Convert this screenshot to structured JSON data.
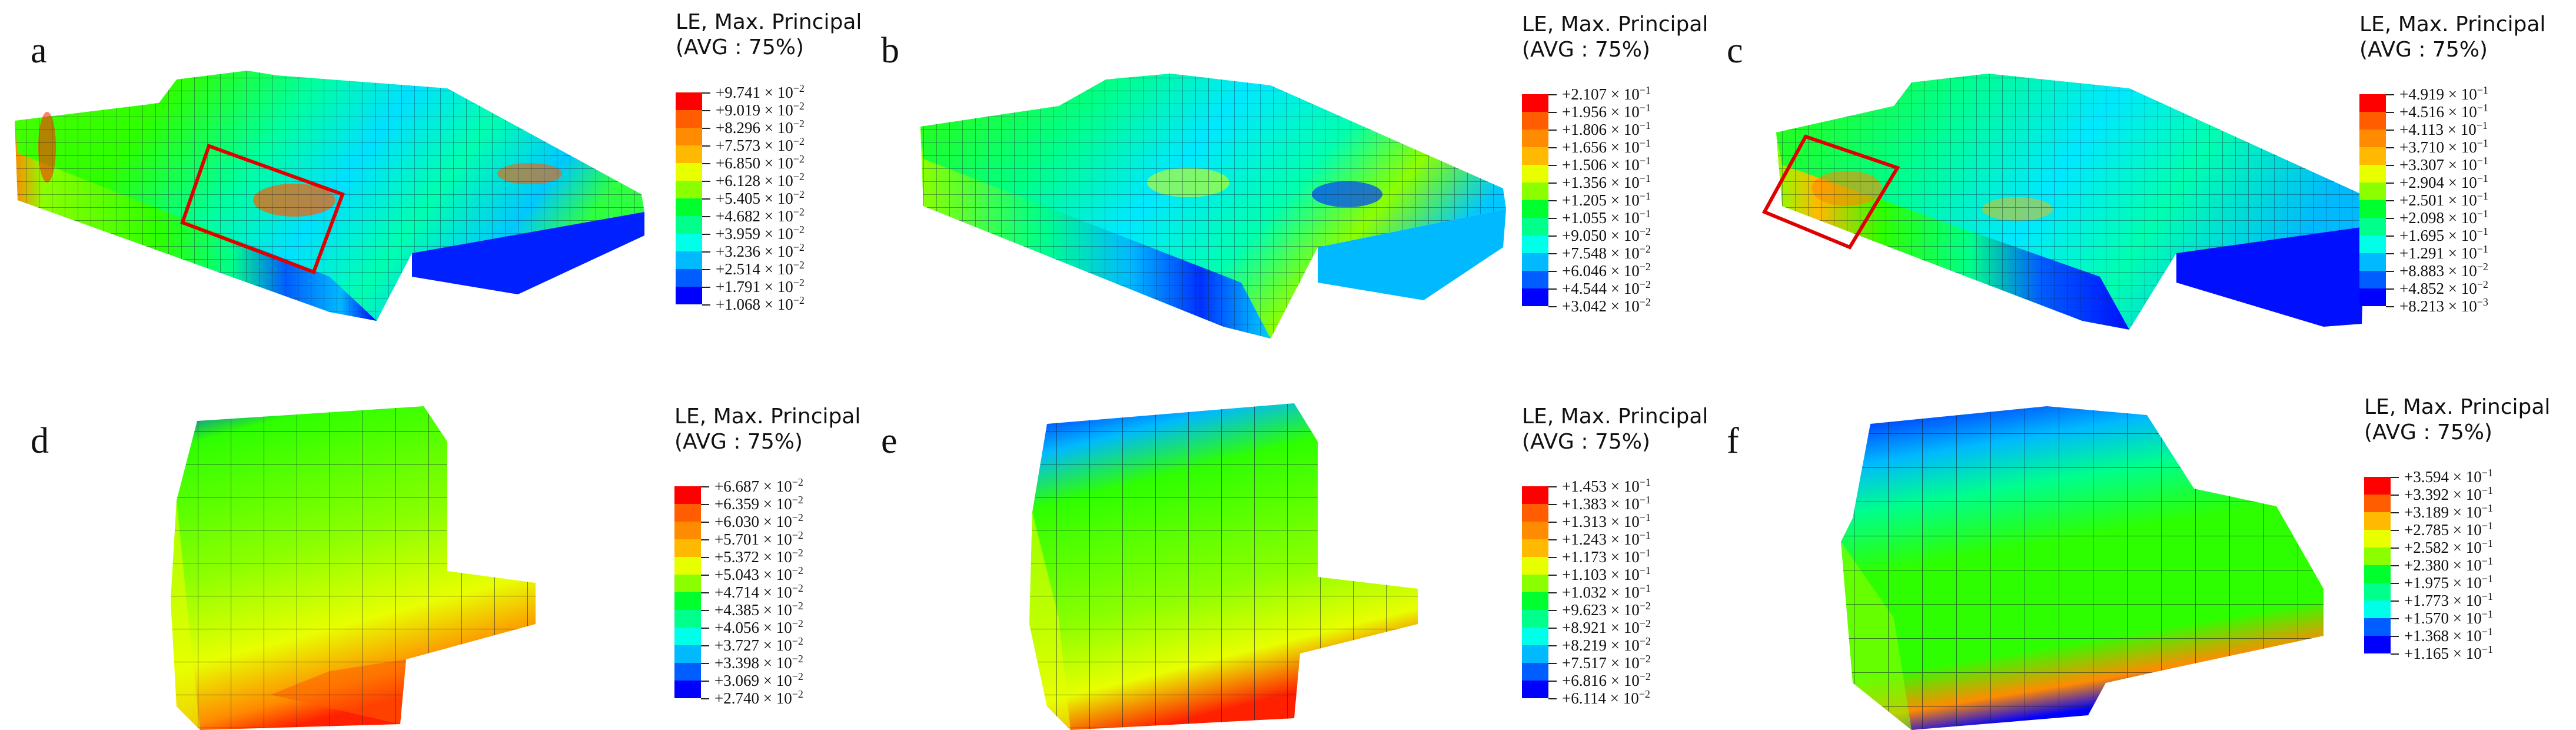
{
  "colors": [
    "#0000ff",
    "#005dff",
    "#00b9ff",
    "#00ffe8",
    "#00ff8b",
    "#00ff2e",
    "#2eff00",
    "#8bff00",
    "#e8ff00",
    "#ffb900",
    "#ff8b00",
    "#ff5d00",
    "#ff0000"
  ],
  "panels": [
    {
      "label": "a",
      "title1": "LE, Max. Principal",
      "title2": "(AVG : 75%)",
      "values": [
        [
          "+9.741",
          "2"
        ],
        [
          "+9.019",
          "2"
        ],
        [
          "+8.296",
          "2"
        ],
        [
          "+7.573",
          "2"
        ],
        [
          "+6.850",
          "2"
        ],
        [
          "+6.128",
          "2"
        ],
        [
          "+5.405",
          "2"
        ],
        [
          "+4.682",
          "2"
        ],
        [
          "+3.959",
          "2"
        ],
        [
          "+3.236",
          "2"
        ],
        [
          "+2.514",
          "2"
        ],
        [
          "+1.791",
          "2"
        ],
        [
          "+1.068",
          "2"
        ]
      ]
    },
    {
      "label": "b",
      "title1": "LE, Max. Principal",
      "title2": "(AVG : 75%)",
      "values": [
        [
          "+2.107",
          "1"
        ],
        [
          "+1.956",
          "1"
        ],
        [
          "+1.806",
          "1"
        ],
        [
          "+1.656",
          "1"
        ],
        [
          "+1.506",
          "1"
        ],
        [
          "+1.356",
          "1"
        ],
        [
          "+1.205",
          "1"
        ],
        [
          "+1.055",
          "1"
        ],
        [
          "+9.050",
          "2"
        ],
        [
          "+7.548",
          "2"
        ],
        [
          "+6.046",
          "2"
        ],
        [
          "+4.544",
          "2"
        ],
        [
          "+3.042",
          "2"
        ]
      ]
    },
    {
      "label": "c",
      "title1": "LE, Max. Principal",
      "title2": "(AVG : 75%)",
      "values": [
        [
          "+4.919",
          "1"
        ],
        [
          "+4.516",
          "1"
        ],
        [
          "+4.113",
          "1"
        ],
        [
          "+3.710",
          "1"
        ],
        [
          "+3.307",
          "1"
        ],
        [
          "+2.904",
          "1"
        ],
        [
          "+2.501",
          "1"
        ],
        [
          "+2.098",
          "1"
        ],
        [
          "+1.695",
          "1"
        ],
        [
          "+1.291",
          "1"
        ],
        [
          "+8.883",
          "2"
        ],
        [
          "+4.852",
          "2"
        ],
        [
          "+8.213",
          "3"
        ]
      ]
    },
    {
      "label": "d",
      "title1": "LE, Max. Principal",
      "title2": "(AVG : 75%)",
      "values": [
        [
          "+6.687",
          "2"
        ],
        [
          "+6.359",
          "2"
        ],
        [
          "+6.030",
          "2"
        ],
        [
          "+5.701",
          "2"
        ],
        [
          "+5.372",
          "2"
        ],
        [
          "+5.043",
          "2"
        ],
        [
          "+4.714",
          "2"
        ],
        [
          "+4.385",
          "2"
        ],
        [
          "+4.056",
          "2"
        ],
        [
          "+3.727",
          "2"
        ],
        [
          "+3.398",
          "2"
        ],
        [
          "+3.069",
          "2"
        ],
        [
          "+2.740",
          "2"
        ]
      ]
    },
    {
      "label": "e",
      "title1": "LE, Max. Principal",
      "title2": "(AVG : 75%)",
      "values": [
        [
          "+1.453",
          "1"
        ],
        [
          "+1.383",
          "1"
        ],
        [
          "+1.313",
          "1"
        ],
        [
          "+1.243",
          "1"
        ],
        [
          "+1.173",
          "1"
        ],
        [
          "+1.103",
          "1"
        ],
        [
          "+1.032",
          "1"
        ],
        [
          "+9.623",
          "2"
        ],
        [
          "+8.921",
          "2"
        ],
        [
          "+8.219",
          "2"
        ],
        [
          "+7.517",
          "2"
        ],
        [
          "+6.816",
          "2"
        ],
        [
          "+6.114",
          "2"
        ]
      ]
    },
    {
      "label": "f",
      "title1": "LE, Max. Principal",
      "title2": "(AVG : 75%)",
      "values": [
        [
          "+3.594",
          "1"
        ],
        [
          "+3.392",
          "1"
        ],
        [
          "+3.189",
          "1"
        ],
        [
          "+2.785",
          "1"
        ],
        [
          "+2.582",
          "1"
        ],
        [
          "+2.380",
          "1"
        ],
        [
          "+1.975",
          "1"
        ],
        [
          "+1.773",
          "1"
        ],
        [
          "+1.570",
          "1"
        ],
        [
          "+1.368",
          "1"
        ],
        [
          "+1.165",
          "1"
        ]
      ]
    }
  ]
}
